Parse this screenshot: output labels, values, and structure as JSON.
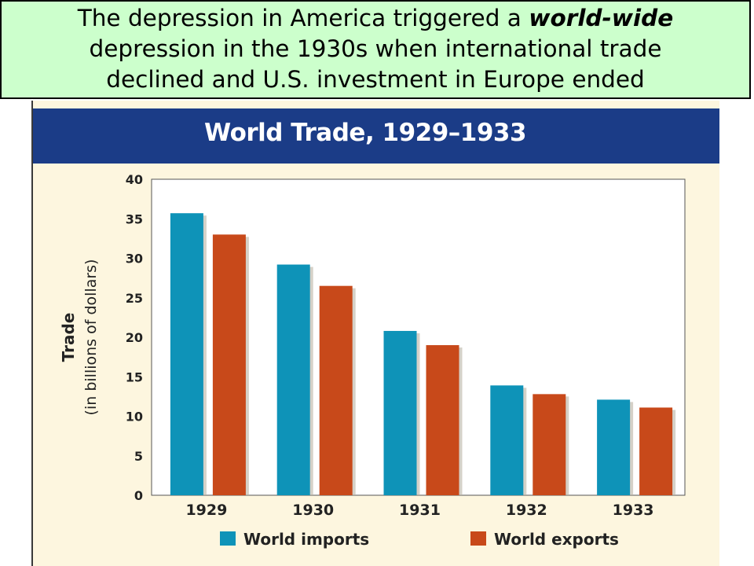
{
  "heading": {
    "line1_pre": "The depression in America triggered a ",
    "line1_emph": "world-wide",
    "line2": "depression in the 1930s when international trade",
    "line3": "declined and U.S. investment in Europe ended"
  },
  "chart_data": {
    "type": "bar",
    "title": "World Trade, 1929–1933",
    "ylabel_main": "Trade",
    "ylabel_sub": "(in billions of dollars)",
    "xlabel": "",
    "categories": [
      "1929",
      "1930",
      "1931",
      "1932",
      "1933"
    ],
    "ylim": [
      0,
      40
    ],
    "yticks": [
      0,
      5,
      10,
      15,
      20,
      25,
      30,
      35,
      40
    ],
    "grid": false,
    "legend_position": "bottom",
    "series": [
      {
        "name": "World imports",
        "color": "#0e93b8",
        "values": [
          35.7,
          29.2,
          20.8,
          13.9,
          12.1
        ]
      },
      {
        "name": "World exports",
        "color": "#c8491a",
        "values": [
          33.0,
          26.5,
          19.0,
          12.8,
          11.1
        ]
      }
    ]
  },
  "colors": {
    "heading_bg": "#ccffcc",
    "panel_bg": "#fdf6df",
    "title_bar": "#1b3c87"
  }
}
